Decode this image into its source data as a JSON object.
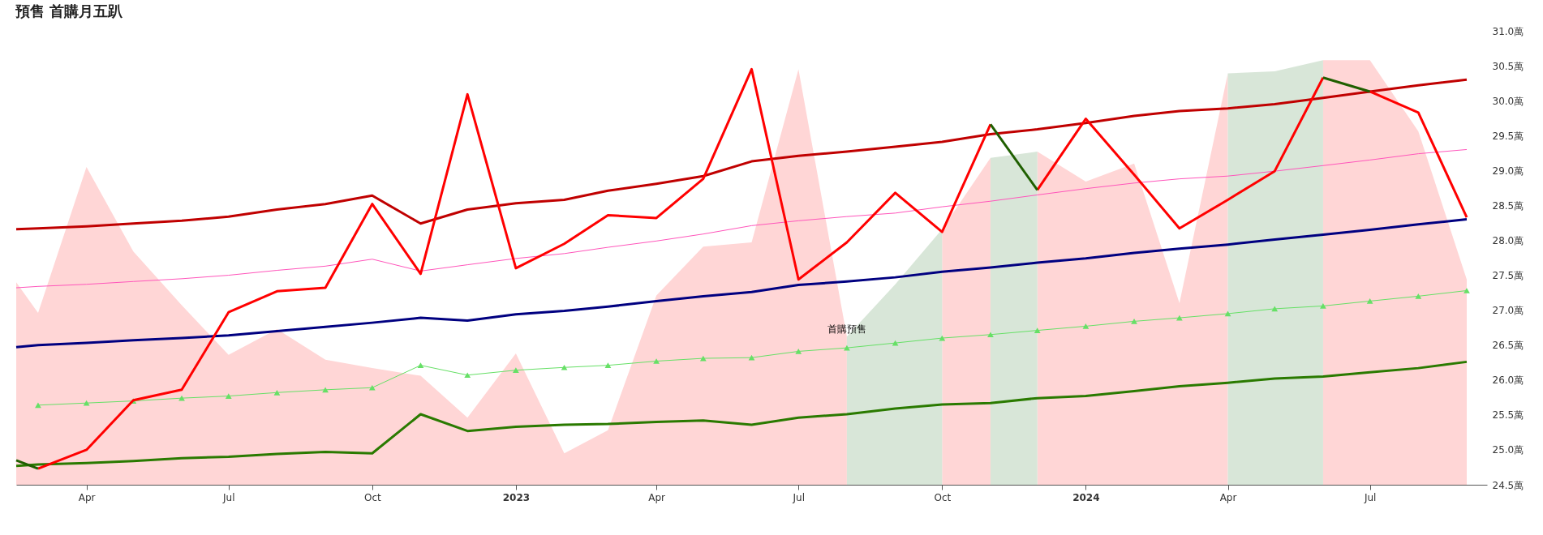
{
  "chart_data": {
    "type": "line",
    "title": "預售 首購月五趴",
    "x": [
      "2022-02-15",
      "2022-03",
      "2022-04",
      "2022-05",
      "2022-06",
      "2022-07",
      "2022-08",
      "2022-09",
      "2022-10",
      "2022-11",
      "2022-12",
      "2023-01",
      "2023-02",
      "2023-03",
      "2023-04",
      "2023-05",
      "2023-06",
      "2023-07",
      "2023-08",
      "2023-09",
      "2023-10",
      "2023-11",
      "2023-12",
      "2024-01",
      "2024-02",
      "2024-03",
      "2024-04",
      "2024-05",
      "2024-06",
      "2024-07",
      "2024-08",
      "2024-09"
    ],
    "xlim": [
      "2022-02-15",
      "2024-09-14"
    ],
    "xticks": [
      {
        "value": "2022-04",
        "label": "Apr"
      },
      {
        "value": "2022-07",
        "label": "Jul"
      },
      {
        "value": "2022-10",
        "label": "Oct"
      },
      {
        "value": "2023-01",
        "label": "2023"
      },
      {
        "value": "2023-04",
        "label": "Apr"
      },
      {
        "value": "2023-07",
        "label": "Jul"
      },
      {
        "value": "2023-10",
        "label": "Oct"
      },
      {
        "value": "2024-01",
        "label": "2024"
      },
      {
        "value": "2024-04",
        "label": "Apr"
      },
      {
        "value": "2024-07",
        "label": "Jul"
      }
    ],
    "ylim": [
      24.5,
      31.0
    ],
    "yticks": [
      {
        "value": 24.5,
        "label": "24.5萬"
      },
      {
        "value": 25,
        "label": "25.0萬"
      },
      {
        "value": 25.5,
        "label": "25.5萬"
      },
      {
        "value": 26,
        "label": "26.0萬"
      },
      {
        "value": 26.5,
        "label": "26.5萬"
      },
      {
        "value": 27,
        "label": "27.0萬"
      },
      {
        "value": 27.5,
        "label": "27.5萬"
      },
      {
        "value": 28,
        "label": "28.0萬"
      },
      {
        "value": 28.5,
        "label": "28.5萬"
      },
      {
        "value": 29,
        "label": "29.0萬"
      },
      {
        "value": 29.5,
        "label": "29.5萬"
      },
      {
        "value": 30,
        "label": "30.0萬"
      },
      {
        "value": 30.5,
        "label": "30.5萬"
      },
      {
        "value": 31,
        "label": "31.0萬"
      }
    ],
    "grid": false,
    "annotations": [
      {
        "text": "首購預售",
        "x": "2023-08",
        "y": 26.73
      }
    ],
    "series": [
      {
        "type": "area",
        "color": "#ffd6d6",
        "x": [
          "2022-02-15",
          "2022-03",
          "2022-04",
          "2022-05",
          "2022-06",
          "2022-07",
          "2022-08",
          "2022-09",
          "2022-10",
          "2022-11",
          "2022-12",
          "2023-01",
          "2023-02",
          "2023-03",
          "2023-04",
          "2023-05",
          "2023-06",
          "2023-07",
          "2023-08"
        ],
        "values": [
          27.4,
          26.96,
          29.05,
          27.84,
          27.07,
          26.36,
          26.73,
          26.29,
          26.17,
          26.06,
          25.46,
          26.38,
          24.95,
          25.28,
          27.21,
          27.91,
          27.97,
          30.45,
          26.62
        ]
      },
      {
        "type": "area",
        "color": "#ffd6d6",
        "x": [
          "2023-10",
          "2023-11"
        ],
        "values": [
          28.16,
          29.18
        ]
      },
      {
        "type": "area",
        "color": "#ffd6d6",
        "x": [
          "2023-12",
          "2024-01",
          "2024-02",
          "2024-03",
          "2024-04"
        ],
        "values": [
          29.27,
          28.84,
          29.1,
          27.1,
          30.39
        ]
      },
      {
        "type": "area",
        "color": "#ffd6d6",
        "x": [
          "2024-06",
          "2024-07",
          "2024-08",
          "2024-09"
        ],
        "values": [
          30.58,
          30.58,
          29.56,
          27.44
        ]
      },
      {
        "type": "area",
        "color": "#d8e6d8",
        "x": [
          "2023-08",
          "2023-09",
          "2023-10"
        ],
        "values": [
          26.62,
          27.37,
          28.16
        ]
      },
      {
        "type": "area",
        "color": "#d8e6d8",
        "x": [
          "2023-11",
          "2023-12"
        ],
        "values": [
          29.18,
          29.27
        ]
      },
      {
        "type": "area",
        "color": "#d8e6d8",
        "x": [
          "2024-04",
          "2024-05",
          "2024-06"
        ],
        "values": [
          30.39,
          30.42,
          30.58
        ]
      },
      {
        "color": "#c00000",
        "values": [
          28.16,
          28.17,
          28.2,
          28.24,
          28.28,
          28.34,
          28.44,
          28.52,
          28.64,
          28.24,
          28.44,
          28.53,
          28.58,
          28.71,
          28.81,
          28.92,
          29.13,
          29.21,
          29.27,
          29.34,
          29.41,
          29.52,
          29.59,
          29.68,
          29.78,
          29.85,
          29.89,
          29.95,
          30.04,
          30.13,
          30.22,
          30.3
        ]
      },
      {
        "color": "#ff55bb",
        "values": [
          27.32,
          27.34,
          27.37,
          27.41,
          27.45,
          27.5,
          27.57,
          27.63,
          27.73,
          27.56,
          27.65,
          27.74,
          27.81,
          27.9,
          27.99,
          28.09,
          28.21,
          28.28,
          28.34,
          28.39,
          28.48,
          28.56,
          28.65,
          28.74,
          28.82,
          28.88,
          28.92,
          28.99,
          29.07,
          29.15,
          29.24,
          29.3
        ]
      },
      {
        "color": "#000080",
        "values": [
          26.47,
          26.5,
          26.53,
          26.57,
          26.6,
          26.64,
          26.7,
          26.76,
          26.82,
          26.89,
          26.85,
          26.94,
          26.99,
          27.05,
          27.13,
          27.2,
          27.26,
          27.36,
          27.41,
          27.47,
          27.55,
          27.61,
          27.68,
          27.74,
          27.82,
          27.88,
          27.94,
          28.01,
          28.08,
          28.15,
          28.23,
          28.3
        ]
      },
      {
        "color": "#66e066",
        "marker": "triangle",
        "values": [
          null,
          25.64,
          25.67,
          25.7,
          25.74,
          25.77,
          25.82,
          25.86,
          25.89,
          26.21,
          26.07,
          26.14,
          26.18,
          26.21,
          26.27,
          26.31,
          26.32,
          26.41,
          26.46,
          26.53,
          26.6,
          26.65,
          26.71,
          26.77,
          26.84,
          26.89,
          26.95,
          27.02,
          27.06,
          27.13,
          27.2,
          27.28
        ]
      },
      {
        "color": "#2a7a00",
        "values": [
          24.77,
          24.79,
          24.81,
          24.84,
          24.88,
          24.9,
          24.94,
          24.97,
          24.95,
          25.51,
          25.27,
          25.33,
          25.36,
          25.37,
          25.4,
          25.42,
          25.36,
          25.46,
          25.51,
          25.59,
          25.65,
          25.67,
          25.74,
          25.77,
          25.84,
          25.91,
          25.96,
          26.02,
          26.05,
          26.11,
          26.17,
          26.26
        ]
      },
      {
        "color": "#ff0000",
        "x": [
          "2022-03",
          "2022-04",
          "2022-05",
          "2022-06",
          "2022-07",
          "2022-08",
          "2022-09",
          "2022-10",
          "2022-11",
          "2022-12",
          "2023-01",
          "2023-02",
          "2023-03",
          "2023-04",
          "2023-05",
          "2023-06",
          "2023-07",
          "2023-08",
          "2023-09",
          "2023-10",
          "2023-11"
        ],
        "values": [
          24.73,
          25.0,
          25.71,
          25.86,
          26.97,
          27.27,
          27.32,
          28.52,
          27.52,
          30.09,
          27.6,
          27.95,
          28.36,
          28.32,
          28.88,
          30.45,
          27.44,
          27.97,
          28.68,
          28.12,
          29.66
        ]
      },
      {
        "color": "#ff0000",
        "x": [
          "2023-12",
          "2024-01",
          "2024-02",
          "2024-03",
          "2024-04",
          "2024-05",
          "2024-06"
        ],
        "values": [
          28.72,
          29.74,
          28.94,
          28.17,
          28.58,
          28.99,
          30.33
        ]
      },
      {
        "color": "#ff0000",
        "x": [
          "2024-07",
          "2024-08",
          "2024-09"
        ],
        "values": [
          30.13,
          29.83,
          28.33
        ]
      },
      {
        "color": "#1f5f00",
        "x": [
          "2022-02-15",
          "2022-03"
        ],
        "values": [
          24.85,
          24.73
        ]
      },
      {
        "color": "#1f5f00",
        "x": [
          "2023-11",
          "2023-12"
        ],
        "values": [
          29.66,
          28.72
        ]
      },
      {
        "color": "#1f5f00",
        "x": [
          "2024-06",
          "2024-07"
        ],
        "values": [
          30.33,
          30.13
        ]
      }
    ]
  }
}
